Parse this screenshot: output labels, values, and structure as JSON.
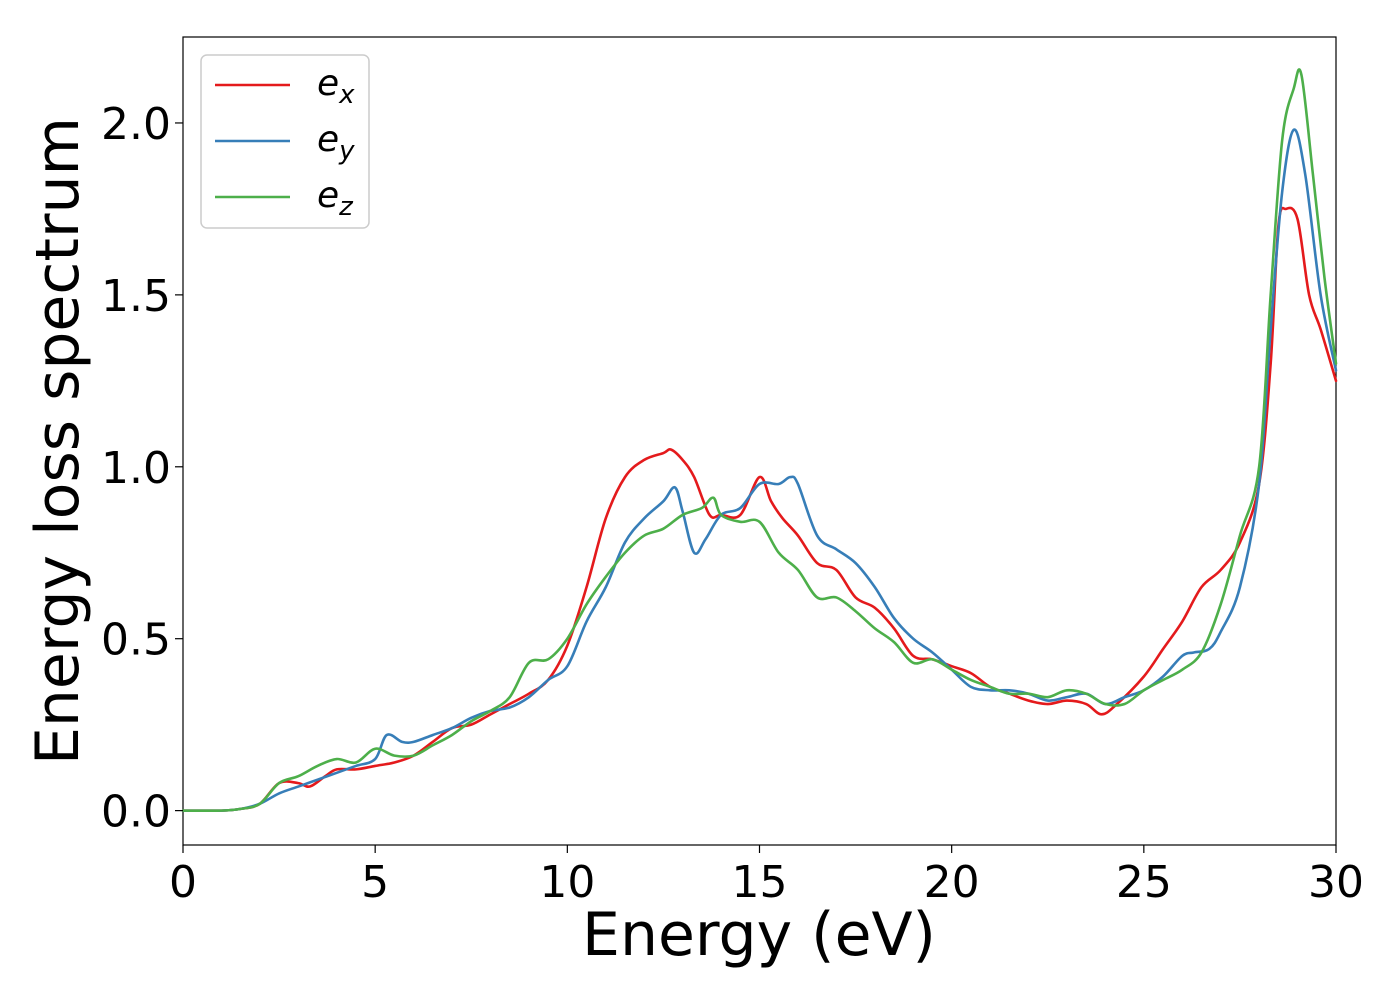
{
  "chart_data": {
    "type": "line",
    "title": "",
    "xlabel": "Energy (eV)",
    "ylabel": "Energy loss spectrum",
    "xlim": [
      0,
      30
    ],
    "ylim": [
      -0.1,
      2.25
    ],
    "xticks": [
      0,
      5,
      10,
      15,
      20,
      25,
      30
    ],
    "xtick_labels": [
      "0",
      "5",
      "10",
      "15",
      "20",
      "25",
      "30"
    ],
    "yticks": [
      0.0,
      0.5,
      1.0,
      1.5,
      2.0
    ],
    "ytick_labels": [
      "0.0",
      "0.5",
      "1.0",
      "1.5",
      "2.0"
    ],
    "grid": false,
    "legend_position": "top-left",
    "series": [
      {
        "name": "e_x",
        "label_base": "e",
        "label_sub": "x",
        "color": "#e41a1c",
        "x": [
          0,
          1,
          1.5,
          2.0,
          2.5,
          3.0,
          3.3,
          3.7,
          4.0,
          4.5,
          5.0,
          5.5,
          6.0,
          6.5,
          7.0,
          7.5,
          8.0,
          8.5,
          9.0,
          9.5,
          10.0,
          10.5,
          11.0,
          11.5,
          12.0,
          12.5,
          12.7,
          13.0,
          13.3,
          13.7,
          14.0,
          14.5,
          15.0,
          15.3,
          15.6,
          16.0,
          16.5,
          17.0,
          17.5,
          18.0,
          18.5,
          19.0,
          19.5,
          20.0,
          20.5,
          21.0,
          21.5,
          22.0,
          22.5,
          23.0,
          23.5,
          23.9,
          24.3,
          25.0,
          25.5,
          26.0,
          26.5,
          27.0,
          27.5,
          28.0,
          28.3,
          28.5,
          28.7,
          29.0,
          29.3,
          29.6,
          30.0
        ],
        "y": [
          0,
          0.0,
          0.005,
          0.02,
          0.08,
          0.08,
          0.07,
          0.1,
          0.12,
          0.12,
          0.13,
          0.14,
          0.16,
          0.2,
          0.24,
          0.25,
          0.28,
          0.31,
          0.34,
          0.38,
          0.48,
          0.65,
          0.85,
          0.97,
          1.02,
          1.04,
          1.05,
          1.02,
          0.97,
          0.86,
          0.86,
          0.86,
          0.97,
          0.9,
          0.85,
          0.8,
          0.72,
          0.7,
          0.62,
          0.59,
          0.53,
          0.45,
          0.44,
          0.42,
          0.4,
          0.36,
          0.34,
          0.32,
          0.31,
          0.32,
          0.31,
          0.28,
          0.31,
          0.39,
          0.47,
          0.55,
          0.65,
          0.7,
          0.78,
          0.95,
          1.3,
          1.7,
          1.75,
          1.72,
          1.5,
          1.4,
          1.25
        ]
      },
      {
        "name": "e_y",
        "label_base": "e",
        "label_sub": "y",
        "color": "#377eb8",
        "x": [
          0,
          1,
          1.5,
          2.0,
          2.5,
          3.0,
          3.5,
          4.0,
          4.5,
          5.0,
          5.3,
          5.7,
          6.0,
          6.5,
          7.0,
          7.5,
          8.0,
          8.5,
          9.0,
          9.5,
          10.0,
          10.5,
          11.0,
          11.5,
          12.0,
          12.5,
          12.8,
          13.0,
          13.3,
          13.6,
          14.0,
          14.5,
          15.0,
          15.5,
          15.8,
          16.0,
          16.5,
          17.0,
          17.5,
          18.0,
          18.5,
          19.0,
          19.5,
          20.0,
          20.5,
          21.0,
          21.5,
          22.0,
          22.5,
          23.0,
          23.5,
          24.0,
          24.5,
          25.0,
          25.5,
          26.0,
          26.3,
          26.7,
          27.0,
          27.5,
          28.0,
          28.3,
          28.6,
          28.9,
          29.2,
          29.6,
          30.0
        ],
        "y": [
          0,
          0.0,
          0.005,
          0.02,
          0.05,
          0.07,
          0.09,
          0.11,
          0.13,
          0.15,
          0.22,
          0.2,
          0.2,
          0.22,
          0.24,
          0.27,
          0.29,
          0.3,
          0.33,
          0.38,
          0.42,
          0.55,
          0.65,
          0.78,
          0.85,
          0.9,
          0.94,
          0.87,
          0.75,
          0.79,
          0.86,
          0.88,
          0.95,
          0.95,
          0.97,
          0.95,
          0.8,
          0.76,
          0.72,
          0.65,
          0.56,
          0.5,
          0.46,
          0.41,
          0.36,
          0.35,
          0.35,
          0.34,
          0.32,
          0.33,
          0.34,
          0.31,
          0.33,
          0.35,
          0.39,
          0.45,
          0.46,
          0.47,
          0.52,
          0.65,
          0.95,
          1.4,
          1.8,
          1.98,
          1.85,
          1.5,
          1.28
        ]
      },
      {
        "name": "e_z",
        "label_base": "e",
        "label_sub": "z",
        "color": "#4daf4a",
        "x": [
          0,
          1,
          1.5,
          2.0,
          2.5,
          3.0,
          3.5,
          4.0,
          4.5,
          5.0,
          5.5,
          6.0,
          6.5,
          7.0,
          7.5,
          8.0,
          8.5,
          9.0,
          9.5,
          10.0,
          10.5,
          11.0,
          11.5,
          12.0,
          12.5,
          13.0,
          13.5,
          13.8,
          14.0,
          14.5,
          15.0,
          15.5,
          16.0,
          16.5,
          17.0,
          17.5,
          18.0,
          18.5,
          19.0,
          19.5,
          20.0,
          20.5,
          21.0,
          21.5,
          22.0,
          22.5,
          23.0,
          23.5,
          24.0,
          24.5,
          25.0,
          25.5,
          26.0,
          26.5,
          27.0,
          27.5,
          28.0,
          28.3,
          28.6,
          28.9,
          29.1,
          29.4,
          29.7,
          30.0
        ],
        "y": [
          0,
          0.0,
          0.005,
          0.02,
          0.08,
          0.1,
          0.13,
          0.15,
          0.14,
          0.18,
          0.16,
          0.16,
          0.19,
          0.22,
          0.26,
          0.29,
          0.33,
          0.43,
          0.44,
          0.5,
          0.6,
          0.68,
          0.75,
          0.8,
          0.82,
          0.86,
          0.88,
          0.91,
          0.86,
          0.84,
          0.84,
          0.75,
          0.7,
          0.62,
          0.62,
          0.58,
          0.53,
          0.49,
          0.43,
          0.44,
          0.41,
          0.38,
          0.36,
          0.34,
          0.34,
          0.33,
          0.35,
          0.34,
          0.31,
          0.31,
          0.35,
          0.38,
          0.41,
          0.46,
          0.6,
          0.8,
          1.0,
          1.5,
          1.95,
          2.1,
          2.14,
          1.85,
          1.55,
          1.3
        ]
      }
    ]
  }
}
